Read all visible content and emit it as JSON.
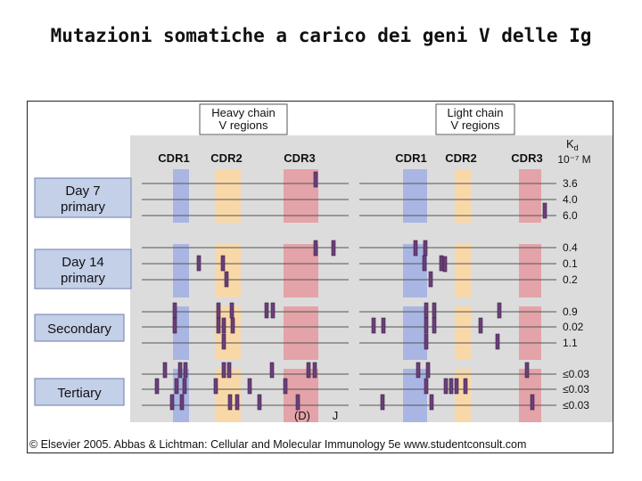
{
  "slide": {
    "title": "Mutazioni somatiche a carico dei geni V delle Ig"
  },
  "figure": {
    "heavy_header": [
      "Heavy chain",
      "V regions"
    ],
    "light_header": [
      "Light chain",
      "V regions"
    ],
    "region_labels": {
      "cdr1": "CDR1",
      "cdr2": "CDR2",
      "cdr3": "CDR3"
    },
    "kd_label": "Kd",
    "kd_sub": "d",
    "kd_unit": "10⁻⁷ M",
    "groups": [
      {
        "label": [
          "Day 7",
          "primary"
        ],
        "kd": [
          "3.6",
          "4.0",
          "6.0"
        ]
      },
      {
        "label": [
          "Day 14",
          "primary"
        ],
        "kd": [
          "0.4",
          "0.1",
          "0.2"
        ]
      },
      {
        "label": [
          "Secondary"
        ],
        "kd": [
          "0.9",
          "0.02",
          "1.1"
        ]
      },
      {
        "label": [
          "Tertiary"
        ],
        "kd": [
          "≤0.03",
          "≤0.03",
          "≤0.03"
        ]
      }
    ],
    "footer_d": "(D)",
    "footer_j": "J",
    "copyright": "© Elsevier 2005. Abbas & Lichtman: Cellular and Molecular Immunology 5e www.studentconsult.com",
    "colors": {
      "panel": "#dcdcdc",
      "cdr1": "#a9b6e3",
      "cdr2": "#f9d8a8",
      "cdr3": "#e3a3a8",
      "mutation": "#6b3f7a",
      "label_box": "#c4cfe8"
    }
  }
}
